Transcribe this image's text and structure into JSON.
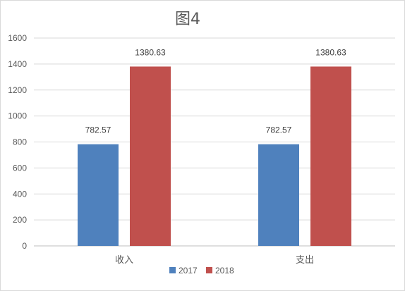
{
  "chart_data": {
    "type": "bar",
    "title": "图4",
    "categories": [
      "收入",
      "支出"
    ],
    "series": [
      {
        "name": "2017",
        "color": "#4F81BD",
        "values": [
          782.57,
          782.57
        ],
        "labels": [
          "782.57",
          "782.57"
        ]
      },
      {
        "name": "2018",
        "color": "#C0504D",
        "values": [
          1380.63,
          1380.63
        ],
        "labels": [
          "1380.63",
          "1380.63"
        ]
      }
    ],
    "ylim": [
      0,
      1600
    ],
    "yticks": [
      "0",
      "200",
      "400",
      "600",
      "800",
      "1000",
      "1200",
      "1400",
      "1600"
    ],
    "grid": true,
    "legend": "bottom"
  }
}
